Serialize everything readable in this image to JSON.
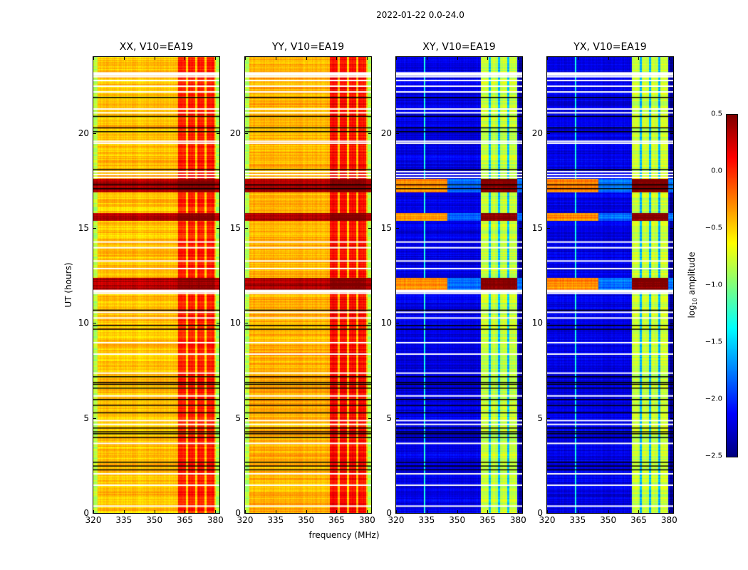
{
  "chart_data": {
    "type": "heatmap",
    "title": "2022-01-22 0.0-24.0",
    "xlabel": "frequency (MHz)",
    "ylabel": "UT (hours)",
    "xlim": [
      320,
      382
    ],
    "ylim": [
      0,
      24
    ],
    "xticks": [
      "320",
      "335",
      "350",
      "365",
      "380"
    ],
    "xtick_values": [
      320,
      335,
      350,
      365,
      380
    ],
    "yticks": [
      "0",
      "5",
      "10",
      "15",
      "20"
    ],
    "ytick_values": [
      0,
      5,
      10,
      15,
      20
    ],
    "colormap": "jet",
    "colorbar": {
      "label_main": "log",
      "label_sub": "10",
      "label_rest": " amplitude",
      "range": [
        -2.5,
        0.5
      ],
      "ticks": [
        "0.5",
        "0.0",
        "−0.5",
        "−1.0",
        "−1.5",
        "−2.0",
        "−2.5"
      ],
      "tick_values": [
        0.5,
        0.0,
        -0.5,
        -1.0,
        -1.5,
        -2.0,
        -2.5
      ],
      "placement": "right"
    },
    "panels": [
      {
        "title": "XX, V10=EA19",
        "kind": "parallel",
        "base_log_amp": -0.45,
        "band_log_amp": 0.05
      },
      {
        "title": "YY, V10=EA19",
        "kind": "parallel",
        "base_log_amp": -0.4,
        "band_log_amp": 0.1
      },
      {
        "title": "XY, V10=EA19",
        "kind": "cross",
        "base_log_amp": -2.2,
        "band_log_amp": -0.8
      },
      {
        "title": "YX, V10=EA19",
        "kind": "cross",
        "base_log_amp": -2.2,
        "band_log_amp": -0.8
      }
    ],
    "band_mhz": [
      361.5,
      379.5
    ],
    "band_subchannel_gaps_mhz": [
      366,
      370.5,
      375
    ],
    "edge_rolloff_mhz": [
      [
        320,
        322
      ],
      [
        380,
        382
      ]
    ],
    "rfi_hours": [
      [
        11.7,
        12.4
      ],
      [
        15.4,
        15.8
      ],
      [
        16.9,
        17.6
      ]
    ],
    "flagged_white_hours": [
      23.0,
      22.8,
      22.5,
      22.2,
      21.3,
      21.1,
      17.85,
      17.7,
      19.6,
      19.5,
      18.0,
      14.3,
      14.0,
      13.3,
      12.9,
      11.6,
      10.6,
      10.3,
      9.0,
      8.4,
      7.4,
      6.2,
      4.9,
      4.7,
      3.7,
      2.1,
      1.5,
      0.4
    ],
    "flagged_black_hours": [
      21.9,
      20.9,
      20.3,
      20.1,
      18.1,
      17.3,
      17.1,
      10.7,
      9.9,
      9.7,
      7.2,
      6.9,
      6.8,
      6.6,
      6.0,
      5.7,
      5.3,
      4.5,
      4.3,
      4.2,
      4.0,
      2.7,
      2.5,
      2.3
    ]
  }
}
